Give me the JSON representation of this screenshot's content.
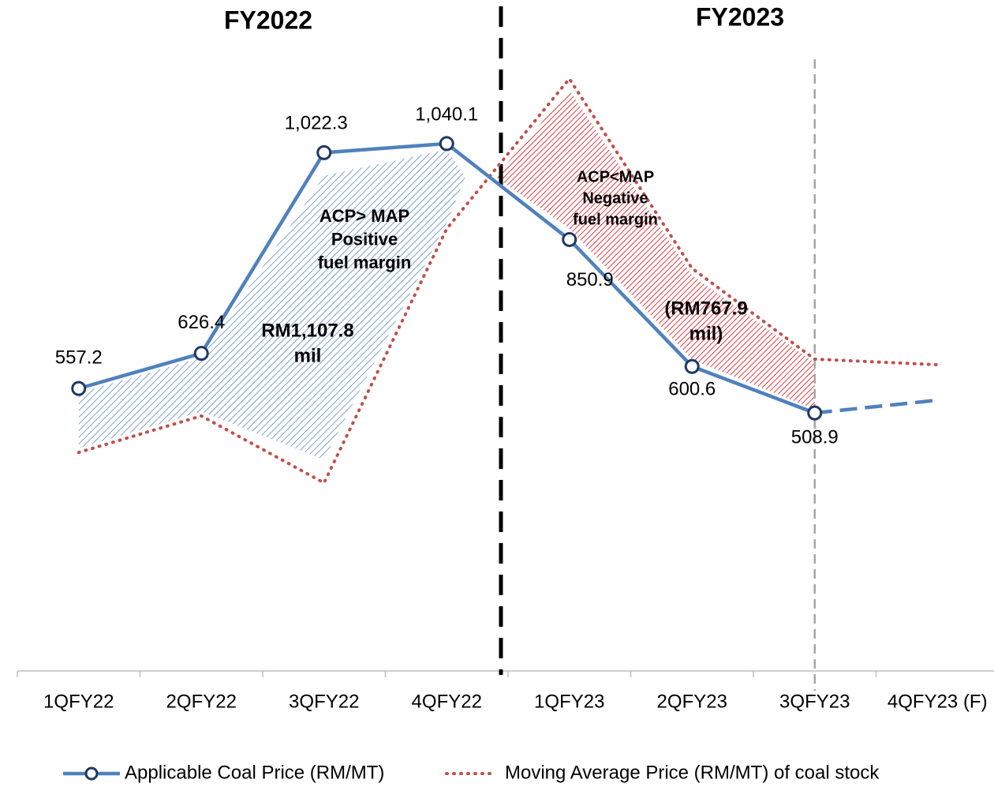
{
  "chart_data": {
    "type": "line",
    "period_labels": [
      "FY2022",
      "FY2023"
    ],
    "categories": [
      "1QFY22",
      "2QFY22",
      "3QFY22",
      "4QFY22",
      "1QFY23",
      "2QFY23",
      "3QFY23",
      "4QFY23 (F)"
    ],
    "series": [
      {
        "name": "Applicable Coal Price (RM/MT)",
        "color": "#4f81bd",
        "style": "solid",
        "forecast_start": 6,
        "values": [
          557.2,
          626.4,
          1022.3,
          1040.1,
          850.9,
          600.6,
          508.9,
          534
        ],
        "value_labels": [
          "557.2",
          "626.4",
          "1,022.3",
          "1,040.1",
          "850.9",
          "600.6",
          "508.9",
          null
        ]
      },
      {
        "name": "Moving Average Price (RM/MT) of coal stock",
        "color": "#c0504d",
        "style": "dotted",
        "values": [
          431,
          503,
          371,
          872,
          1168,
          794,
          615,
          604
        ]
      }
    ],
    "annotations": [
      {
        "lines": [
          "ACP> MAP",
          "Positive",
          "fuel margin"
        ],
        "color": "#4f81bd"
      },
      {
        "lines": [
          "RM1,107.8",
          "mil"
        ],
        "color": "#4f81bd"
      },
      {
        "lines": [
          "ACP<MAP",
          "Negative",
          "fuel margin"
        ],
        "color": "#e0242a"
      },
      {
        "lines": [
          "(RM767.9",
          "mil)"
        ],
        "color": "#e0242a"
      }
    ],
    "ylim": [
      0,
      1300
    ],
    "legend": "bottom"
  }
}
